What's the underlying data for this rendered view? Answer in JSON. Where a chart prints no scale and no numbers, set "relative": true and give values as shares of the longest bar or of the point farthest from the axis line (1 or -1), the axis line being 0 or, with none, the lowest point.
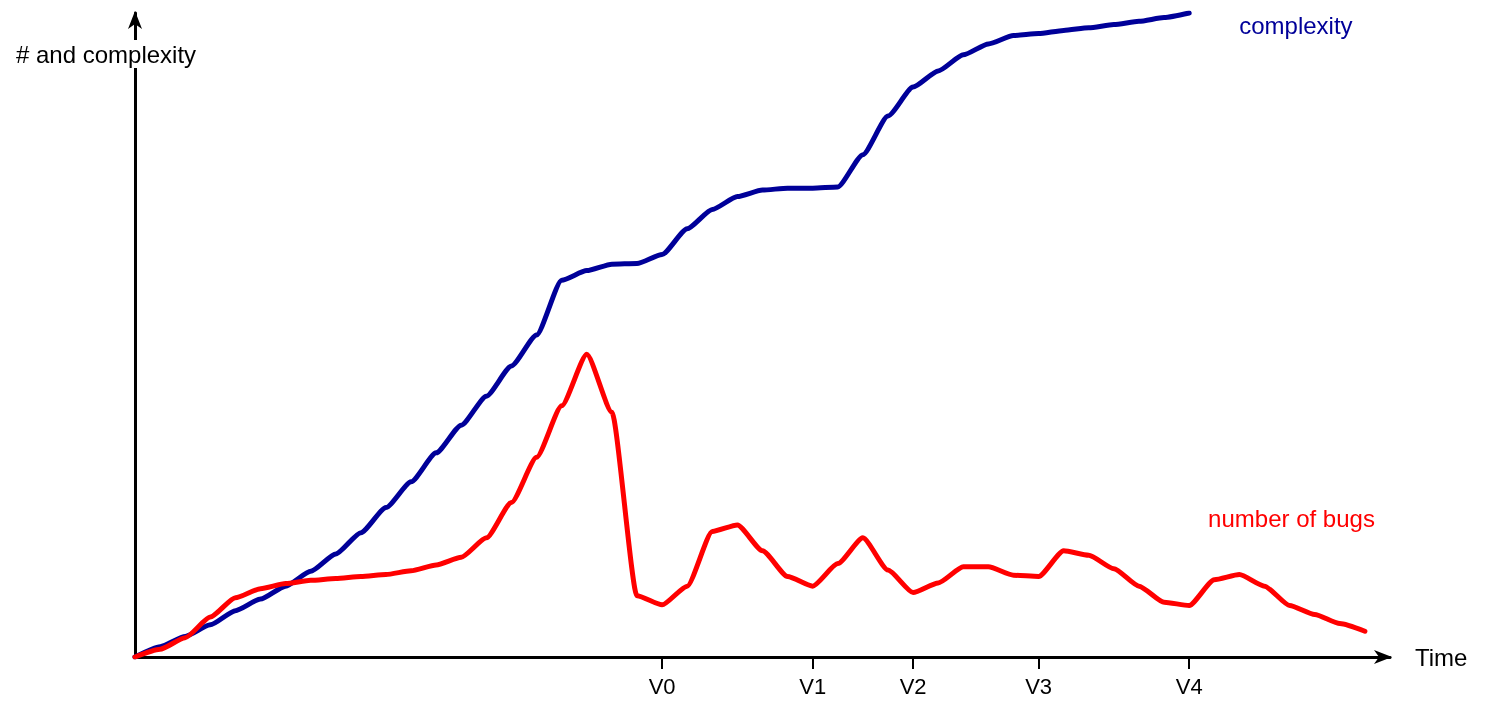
{
  "chart_data": {
    "type": "line",
    "relative": true,
    "xlabel": "Time",
    "ylabel": "# and complexity",
    "categories": [
      null,
      null,
      null,
      null,
      null,
      null,
      null,
      null,
      null,
      null,
      null,
      null,
      null,
      null,
      null,
      null,
      null,
      null,
      null,
      null,
      null,
      "V0",
      null,
      null,
      null,
      null,
      null,
      "V1",
      null,
      null,
      null,
      "V2",
      null,
      null,
      null,
      null,
      "V3",
      null,
      null,
      null,
      null,
      null,
      "V4",
      null,
      null,
      null,
      null,
      null,
      null,
      null,
      null
    ],
    "legend": false,
    "grid": false,
    "marker": "none",
    "line_style": "solid",
    "series": [
      {
        "name": "complexity",
        "color": "#000099",
        "values": [
          0,
          0.016,
          0.032,
          0.05,
          0.072,
          0.09,
          0.11,
          0.133,
          0.16,
          0.193,
          0.232,
          0.272,
          0.317,
          0.36,
          0.405,
          0.452,
          0.5,
          0.585,
          0.6,
          0.61,
          0.611,
          0.625,
          0.665,
          0.695,
          0.715,
          0.725,
          0.728,
          0.728,
          0.73,
          0.78,
          0.84,
          0.885,
          0.91,
          0.935,
          0.952,
          0.965,
          0.968,
          0.973,
          0.977,
          0.982,
          0.987,
          0.993,
          1,
          null,
          null,
          null,
          null,
          null,
          null,
          null,
          null
        ]
      },
      {
        "name": "number of bugs",
        "color": "#ff0000",
        "values": [
          0,
          0.012,
          0.03,
          0.062,
          0.092,
          0.106,
          0.114,
          0.119,
          0.122,
          0.125,
          0.128,
          0.134,
          0.143,
          0.155,
          0.185,
          0.24,
          0.31,
          0.39,
          0.47,
          0.38,
          0.095,
          0.081,
          0.11,
          0.195,
          0.205,
          0.165,
          0.125,
          0.11,
          0.145,
          0.185,
          0.135,
          0.1,
          0.115,
          0.14,
          0.14,
          0.127,
          0.125,
          0.165,
          0.158,
          0.137,
          0.11,
          0.085,
          0.08,
          0.12,
          0.128,
          0.11,
          0.08,
          0.066,
          0.052,
          0.04,
          null
        ]
      }
    ]
  }
}
